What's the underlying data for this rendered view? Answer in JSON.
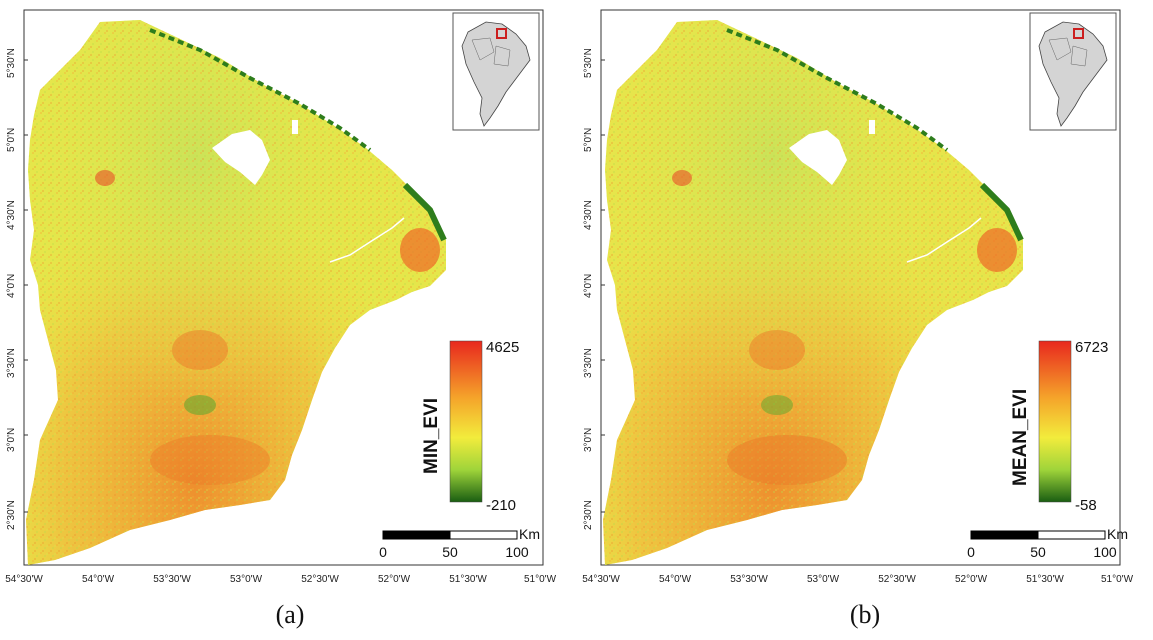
{
  "panels": [
    {
      "id": "a",
      "caption": "(a)",
      "legend": {
        "title": "MIN_EVI",
        "max": "4625",
        "min": "-210"
      },
      "lat_ticks": [
        "5°30'N",
        "5°0'N",
        "4°30'N",
        "4°0'N",
        "3°30'N",
        "3°0'N",
        "2°30'N"
      ],
      "lon_ticks": [
        "54°30'W",
        "54°0'W",
        "53°30'W",
        "53°0'W",
        "52°30'W",
        "52°0'W",
        "51°30'W",
        "51°0'W"
      ],
      "scalebar": {
        "unit": "Km",
        "labels": [
          "0",
          "50",
          "100"
        ]
      }
    },
    {
      "id": "b",
      "caption": "(b)",
      "legend": {
        "title": "MEAN_EVI",
        "max": "6723",
        "min": "-58"
      },
      "lat_ticks": [
        "5°30'N",
        "5°0'N",
        "4°30'N",
        "4°0'N",
        "3°30'N",
        "3°0'N",
        "2°30'N"
      ],
      "lon_ticks": [
        "54°30'W",
        "54°0'W",
        "53°30'W",
        "53°0'W",
        "52°30'W",
        "52°0'W",
        "51°30'W",
        "51°0'W"
      ],
      "scalebar": {
        "unit": "Km",
        "labels": [
          "0",
          "50",
          "100"
        ]
      }
    }
  ],
  "colors": {
    "ramp_high": "#e8281e",
    "ramp_mid": "#f2ec3c",
    "ramp_low": "#1a5e12",
    "land_base": "#e9e84a",
    "inset_land": "#d4d4d4",
    "inset_highlight": "#cc1f1f"
  },
  "icons": [
    "south-america-locator-icon"
  ]
}
